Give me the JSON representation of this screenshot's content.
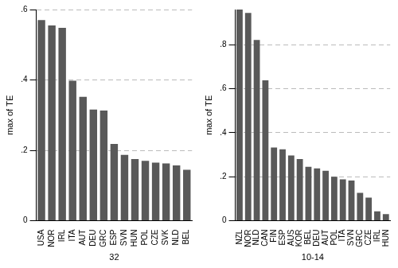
{
  "chart_data": [
    {
      "type": "bar",
      "x_label": "32",
      "y_label": "max of TE",
      "categories": [
        "USA",
        "NOR",
        "IRL",
        "ITA",
        "AUT",
        "DEU",
        "GRC",
        "ESP",
        "SVN",
        "HUN",
        "POL",
        "CZE",
        "SVK",
        "NLD",
        "BEL"
      ],
      "values": [
        0.57,
        0.555,
        0.548,
        0.398,
        0.352,
        0.316,
        0.313,
        0.218,
        0.187,
        0.175,
        0.17,
        0.165,
        0.163,
        0.157,
        0.145
      ],
      "color": "#595959",
      "ylim": [
        0,
        0.6
      ],
      "yticks": [
        0,
        {
          "value": 0.2,
          "label": ".2"
        },
        {
          "value": 0.4,
          "label": ".4"
        },
        {
          "value": 0.6,
          "label": ".6"
        }
      ],
      "grid": true
    },
    {
      "type": "bar",
      "x_label": "10-14",
      "y_label": "max of TE",
      "categories": [
        "NZL",
        "NOR",
        "NLD",
        "CAN",
        "FIN",
        "ESP",
        "AUS",
        "KOR",
        "BEL",
        "DEU",
        "AUT",
        "POL",
        "ITA",
        "SVN",
        "GRC",
        "CZE",
        "IRL",
        "HUN"
      ],
      "values": [
        0.96,
        0.945,
        0.822,
        0.638,
        0.333,
        0.325,
        0.297,
        0.28,
        0.245,
        0.238,
        0.227,
        0.2,
        0.188,
        0.183,
        0.127,
        0.105,
        0.043,
        0.03
      ],
      "color": "#595959",
      "ylim": [
        0,
        0.96
      ],
      "yticks": [
        0,
        {
          "value": 0.2,
          "label": ".2"
        },
        {
          "value": 0.4,
          "label": ".4"
        },
        {
          "value": 0.6,
          "label": ".6"
        },
        {
          "value": 0.8,
          "label": ".8"
        }
      ],
      "grid": true
    }
  ]
}
